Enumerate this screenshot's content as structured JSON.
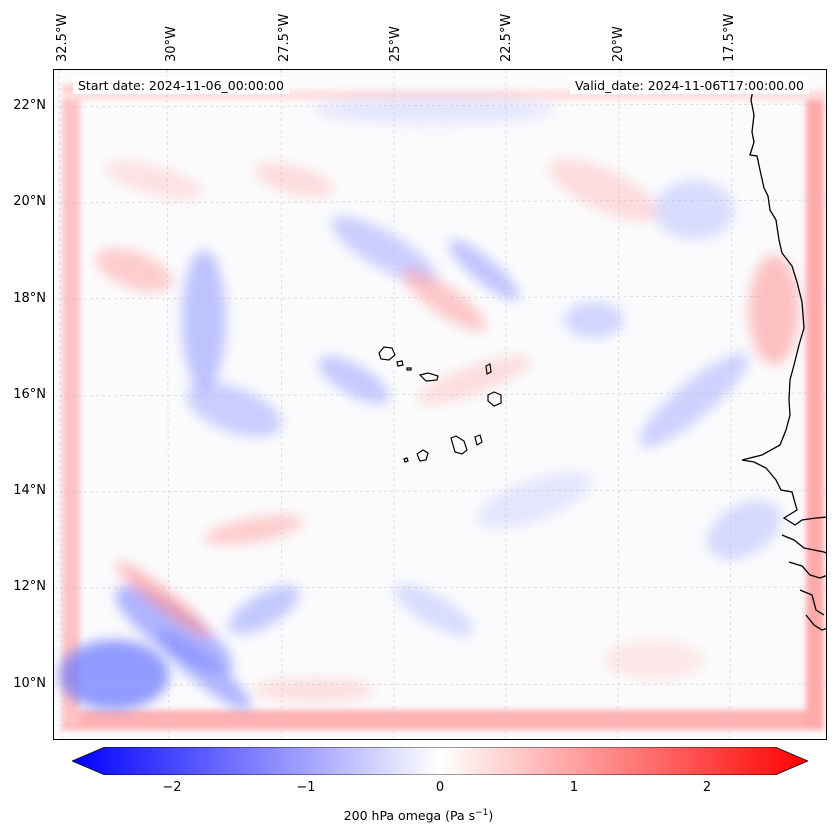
{
  "map": {
    "start_date_label": "Start date: 2024-11-06_00:00:00",
    "valid_date_label": "Valid_date: 2024-11-06T17:00:00.00",
    "longitude_labels": [
      "32.5°W",
      "30°W",
      "27.5°W",
      "25°W",
      "22.5°W",
      "20°W",
      "17.5°W"
    ],
    "latitude_labels": [
      "22°N",
      "20°N",
      "18°N",
      "16°N",
      "14°N",
      "12°N",
      "10°N"
    ],
    "field_colors": {
      "negative": "#0000ff",
      "zero": "#ffffff",
      "positive": "#ff0000"
    },
    "coastline_color": "#000000"
  },
  "colorbar": {
    "ticks": [
      "−2",
      "−1",
      "0",
      "1",
      "2"
    ],
    "range": [
      -2.5,
      2.5
    ],
    "label_prefix": "200 hPa omega (Pa s",
    "label_exp": "−1",
    "label_suffix": ")"
  }
}
